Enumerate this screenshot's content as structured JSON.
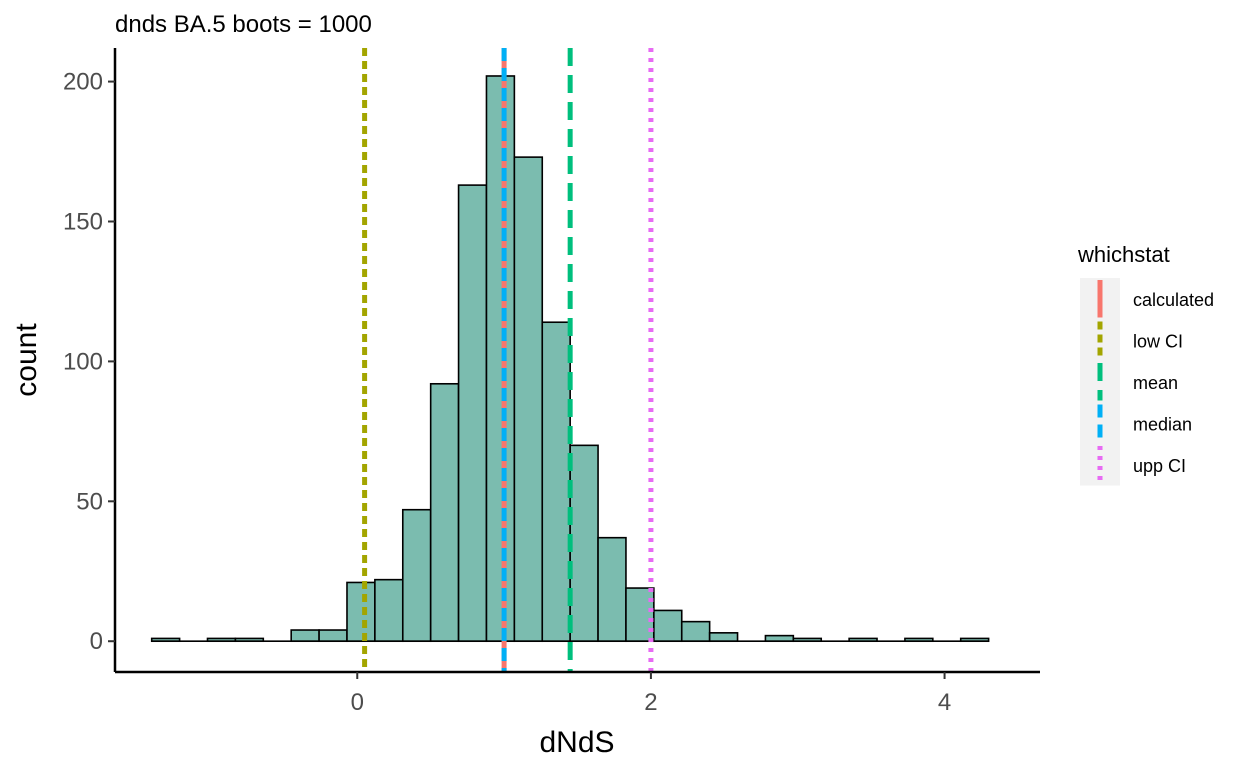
{
  "chart_data": {
    "type": "histogram",
    "title": "dnds BA.5 boots = 1000",
    "xlabel": "dNdS",
    "ylabel": "count",
    "xlim": [
      -1.65,
      4.65
    ],
    "ylim": [
      -11,
      212
    ],
    "x_ticks": [
      0,
      2,
      4
    ],
    "y_ticks": [
      0,
      50,
      100,
      150,
      200
    ],
    "x_tick_labels": [
      "0",
      "2",
      "4"
    ],
    "y_tick_labels": [
      "0",
      "50",
      "100",
      "150",
      "200"
    ],
    "bin_width": 0.19,
    "bins": [
      {
        "x": -1.4,
        "count": 1
      },
      {
        "x": -1.02,
        "count": 1
      },
      {
        "x": -0.83,
        "count": 1
      },
      {
        "x": -0.45,
        "count": 4
      },
      {
        "x": -0.26,
        "count": 4
      },
      {
        "x": -0.07,
        "count": 21
      },
      {
        "x": 0.12,
        "count": 22
      },
      {
        "x": 0.31,
        "count": 47
      },
      {
        "x": 0.5,
        "count": 92
      },
      {
        "x": 0.69,
        "count": 163
      },
      {
        "x": 0.88,
        "count": 202
      },
      {
        "x": 1.07,
        "count": 173
      },
      {
        "x": 1.26,
        "count": 114
      },
      {
        "x": 1.45,
        "count": 70
      },
      {
        "x": 1.64,
        "count": 37
      },
      {
        "x": 1.83,
        "count": 19
      },
      {
        "x": 2.02,
        "count": 11
      },
      {
        "x": 2.21,
        "count": 7
      },
      {
        "x": 2.4,
        "count": 3
      },
      {
        "x": 2.78,
        "count": 2
      },
      {
        "x": 2.97,
        "count": 1
      },
      {
        "x": 3.35,
        "count": 1
      },
      {
        "x": 3.73,
        "count": 1
      },
      {
        "x": 4.11,
        "count": 1
      }
    ],
    "bar_fill": "#7bbcaf",
    "bar_stroke": "#000000",
    "vlines": [
      {
        "name": "calculated",
        "x": 1.0,
        "color": "#F8766D",
        "dash": "solid"
      },
      {
        "name": "low CI",
        "x": 0.05,
        "color": "#A3A500",
        "dash": "short"
      },
      {
        "name": "mean",
        "x": 1.45,
        "color": "#00BF7D",
        "dash": "long"
      },
      {
        "name": "median",
        "x": 1.0,
        "color": "#00B0F6",
        "dash": "medium"
      },
      {
        "name": "upp CI",
        "x": 2.0,
        "color": "#E76BF3",
        "dash": "dotted"
      }
    ],
    "legend": {
      "title": "whichstat",
      "placement": "right",
      "items": [
        "calculated",
        "low CI",
        "mean",
        "median",
        "upp CI"
      ]
    },
    "grid": false
  }
}
